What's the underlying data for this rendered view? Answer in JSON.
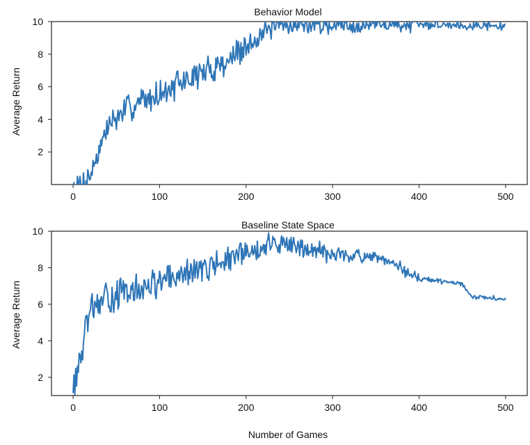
{
  "figure": {
    "xlabel": "Number of Games"
  },
  "colors": {
    "line": "#2e75b6",
    "axis": "#222222"
  },
  "chart_data": [
    {
      "type": "line",
      "title": "Behavior Model",
      "xlabel": "",
      "ylabel": "Average Return",
      "xlim": [
        -25,
        525
      ],
      "ylim": [
        0,
        10
      ],
      "xticks": [
        0,
        100,
        200,
        300,
        400,
        500
      ],
      "yticks": [
        2,
        4,
        6,
        8,
        10
      ],
      "grid": false,
      "noise": {
        "seed": 7,
        "amplitude": [
          0.9,
          0.9,
          0.7,
          0.5,
          0.3,
          0.25
        ]
      },
      "series": [
        {
          "x": [
            0,
            10,
            20,
            30,
            40,
            50,
            60,
            75,
            100,
            125,
            150,
            175,
            200,
            215,
            230,
            250,
            300,
            350,
            400,
            450,
            500
          ],
          "y": [
            0,
            0,
            0.6,
            2.2,
            3.6,
            4.1,
            4.5,
            5.0,
            5.6,
            6.2,
            6.9,
            7.5,
            8.3,
            9.2,
            9.6,
            9.8,
            9.8,
            9.8,
            9.8,
            9.8,
            9.7
          ]
        }
      ]
    },
    {
      "type": "line",
      "title": "Baseline State Space",
      "xlabel": "Number of Games",
      "ylabel": "Average Return",
      "xlim": [
        -25,
        525
      ],
      "ylim": [
        1,
        10
      ],
      "xticks": [
        0,
        100,
        200,
        300,
        400,
        500
      ],
      "yticks": [
        2,
        4,
        6,
        8,
        10
      ],
      "grid": false,
      "noise": {
        "seed": 13,
        "amplitude": [
          0.9,
          0.8,
          0.6,
          0.4,
          0.15,
          0.1
        ]
      },
      "series": [
        {
          "x": [
            0,
            3,
            8,
            15,
            22,
            30,
            50,
            75,
            100,
            150,
            200,
            230,
            250,
            300,
            350,
            370,
            400,
            450,
            460,
            500
          ],
          "y": [
            1.6,
            2.0,
            3.0,
            4.5,
            5.8,
            6.1,
            6.5,
            6.8,
            7.2,
            8.0,
            8.7,
            9.4,
            9.2,
            8.8,
            8.5,
            8.2,
            7.4,
            7.1,
            6.4,
            6.3
          ]
        }
      ]
    }
  ]
}
